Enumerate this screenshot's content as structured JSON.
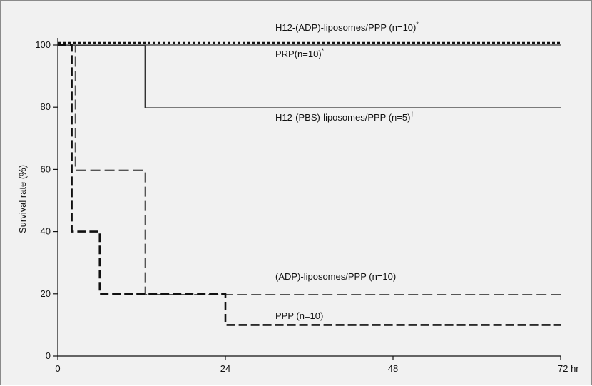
{
  "chart_data": {
    "type": "line",
    "title": "",
    "xlabel": "",
    "x_unit": "hr",
    "ylabel": "Survival rate (%)",
    "xlim": [
      0,
      72
    ],
    "ylim": [
      0,
      100
    ],
    "xticks": [
      0,
      24,
      48,
      72
    ],
    "yticks": [
      0,
      20,
      40,
      60,
      80,
      100
    ],
    "step": true,
    "grid": false,
    "series": [
      {
        "name": "H12-(ADP)-liposomes/PPP (n=10)",
        "sup": "*",
        "style": "dotted",
        "color": "#111111",
        "x": [
          0,
          72
        ],
        "y": [
          100,
          100
        ]
      },
      {
        "name": "PRP(n=10)",
        "sup": "*",
        "style": "solid-thin",
        "color": "#555555",
        "x": [
          0,
          72
        ],
        "y": [
          100,
          100
        ]
      },
      {
        "name": "H12-(PBS)-liposomes/PPP (n=5)",
        "sup": "†",
        "style": "solid",
        "color": "#333333",
        "x": [
          0,
          12.5,
          72
        ],
        "y": [
          100,
          80,
          80
        ]
      },
      {
        "name": "(ADP)-liposomes/PPP (n=10)",
        "sup": "",
        "style": "dashed-thin",
        "color": "#555555",
        "x": [
          0,
          2.5,
          12.5,
          72
        ],
        "y": [
          100,
          60,
          20,
          20
        ]
      },
      {
        "name": "PPP (n=10)",
        "sup": "",
        "style": "dashed-thick",
        "color": "#111111",
        "x": [
          0,
          2,
          6,
          24,
          72
        ],
        "y": [
          100,
          40,
          20,
          10,
          10
        ]
      }
    ]
  },
  "labels": {
    "x_unit_label": "72 hr"
  }
}
